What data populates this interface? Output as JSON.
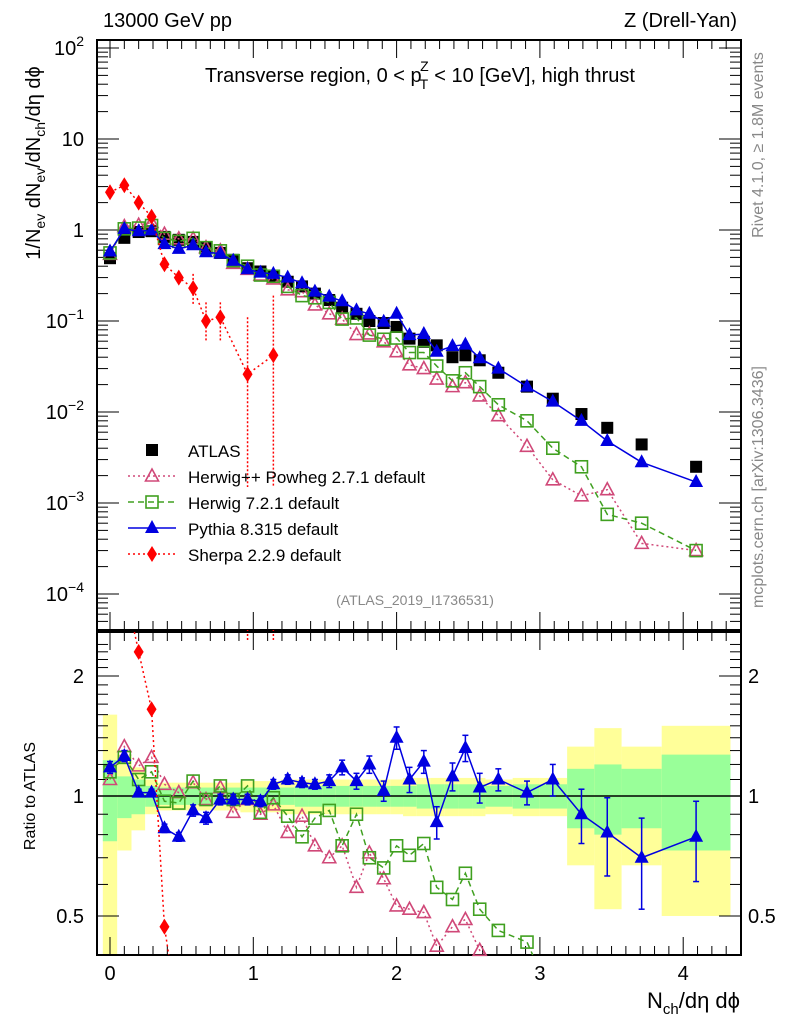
{
  "header": {
    "left": "13000 GeV pp",
    "right": "Z (Drell-Yan)"
  },
  "side_labels": {
    "top": "Rivet 4.1.0, ≥ 1.8M events",
    "bottom": "mcplots.cern.ch [arXiv:1306.3436]"
  },
  "analysis_id": "(ATLAS_2019_I1736531)",
  "chart_data": [
    {
      "type": "scatter",
      "panel": "main",
      "title": "Transverse region, 0 < p_T^Z < 10 [GeV], high thrust",
      "ylabel": "1/N_ev dN_ev/dN_ch/dη dϕ",
      "xlabel": "",
      "yscale": "log",
      "ylim": [
        3e-05,
        150
      ],
      "xlim": [
        -0.09,
        4.4
      ],
      "ytick_labels": [
        "10^2",
        "10",
        "1",
        "10^-1",
        "10^-2",
        "10^-3",
        "10^-4"
      ],
      "legend_position": "lower-left",
      "x": [
        0,
        0.1,
        0.2,
        0.29,
        0.38,
        0.48,
        0.58,
        0.67,
        0.77,
        0.86,
        0.96,
        1.05,
        1.14,
        1.24,
        1.34,
        1.43,
        1.53,
        1.62,
        1.72,
        1.81,
        1.91,
        2.0,
        2.09,
        2.19,
        2.28,
        2.39,
        2.48,
        2.58,
        2.71,
        2.91,
        3.09,
        3.29,
        3.47,
        3.71,
        4.09
      ],
      "series": [
        {
          "name": "ATLAS",
          "style": "data",
          "color": "#000000",
          "values": [
            0.49,
            0.82,
            0.95,
            0.97,
            0.84,
            0.78,
            0.74,
            0.65,
            0.56,
            0.47,
            0.38,
            0.35,
            0.31,
            0.27,
            0.24,
            0.2,
            0.17,
            0.14,
            0.12,
            0.1,
            0.095,
            0.086,
            0.064,
            0.059,
            0.054,
            0.04,
            0.042,
            0.037,
            0.027,
            0.019,
            0.014,
            0.0095,
            0.0067,
            0.0044,
            0.0025
          ]
        },
        {
          "name": "Herwig++ Powheg 2.7.1 default",
          "style": "dotted-open-triangle",
          "color": "#d04878",
          "values": [
            0.54,
            1.09,
            1.13,
            1.21,
            0.9,
            0.8,
            0.8,
            0.64,
            0.59,
            0.43,
            0.37,
            0.32,
            0.29,
            0.22,
            0.21,
            0.15,
            0.12,
            0.105,
            0.071,
            0.072,
            0.059,
            0.046,
            0.033,
            0.03,
            0.023,
            0.019,
            0.021,
            0.015,
            0.0091,
            0.0042,
            0.0018,
            0.0012,
            0.0014,
            0.00036,
            0.0003
          ]
        },
        {
          "name": "Herwig 7.2.1 default",
          "style": "dashed-open-square",
          "color": "#40a020",
          "values": [
            0.56,
            1.03,
            1.05,
            1.12,
            0.81,
            0.75,
            0.81,
            0.64,
            0.59,
            0.46,
            0.4,
            0.32,
            0.31,
            0.24,
            0.19,
            0.18,
            0.16,
            0.105,
            0.108,
            0.07,
            0.063,
            0.065,
            0.045,
            0.045,
            0.032,
            0.022,
            0.027,
            0.019,
            0.012,
            0.008,
            0.004,
            0.0025,
            0.00075,
            0.0006,
            0.0003
          ]
        },
        {
          "name": "Pythia 8.315 default",
          "style": "solid-filled-triangle",
          "color": "#0000e0",
          "values": [
            0.58,
            1.03,
            0.97,
            0.99,
            0.7,
            0.62,
            0.68,
            0.57,
            0.55,
            0.46,
            0.37,
            0.34,
            0.33,
            0.3,
            0.26,
            0.21,
            0.185,
            0.165,
            0.131,
            0.12,
            0.098,
            0.12,
            0.07,
            0.072,
            0.046,
            0.053,
            0.055,
            0.039,
            0.03,
            0.019,
            0.013,
            0.008,
            0.0048,
            0.0028,
            0.0017
          ]
        },
        {
          "name": "Sherpa 2.2.9 default",
          "style": "dotted-filled-diamond",
          "color": "#ff0000",
          "x": [
            0,
            0.1,
            0.2,
            0.29,
            0.38,
            0.48,
            0.58,
            0.67,
            0.77,
            0.96,
            1.14
          ],
          "values": [
            2.6,
            3.1,
            2.0,
            1.4,
            0.42,
            0.3,
            0.23,
            0.1,
            0.11,
            0.026,
            0.042
          ]
        }
      ]
    },
    {
      "type": "scatter",
      "panel": "ratio",
      "ylabel": "Ratio to ATLAS",
      "xlabel": "N_ch/dη dϕ",
      "yscale": "log",
      "ylim": [
        0.4,
        2.5
      ],
      "xlim": [
        -0.09,
        4.4
      ],
      "ytick_labels": [
        "0.5",
        "1",
        "2"
      ],
      "xtick_labels": [
        "0",
        "1",
        "2",
        "3",
        "4"
      ],
      "reference_line": 1,
      "band_edges": [
        -0.05,
        0.05,
        0.15,
        0.245,
        0.335,
        0.43,
        0.53,
        0.625,
        0.72,
        0.815,
        0.91,
        1.005,
        1.095,
        1.19,
        1.29,
        1.385,
        1.48,
        1.575,
        1.67,
        1.765,
        1.86,
        1.955,
        2.045,
        2.14,
        2.235,
        2.335,
        2.435,
        2.53,
        2.62,
        2.81,
        3.0,
        3.19,
        3.38,
        3.57,
        3.85,
        4.33
      ],
      "band_stat_sys_inner": [
        0.23,
        0.12,
        0.1,
        0.06,
        0.05,
        0.05,
        0.05,
        0.05,
        0.05,
        0.05,
        0.05,
        0.05,
        0.05,
        0.05,
        0.06,
        0.06,
        0.06,
        0.06,
        0.06,
        0.06,
        0.06,
        0.06,
        0.06,
        0.07,
        0.07,
        0.07,
        0.07,
        0.07,
        0.06,
        0.07,
        0.07,
        0.17,
        0.2,
        0.17,
        0.27
      ],
      "band_outer": [
        0.6,
        0.27,
        0.18,
        0.1,
        0.08,
        0.08,
        0.08,
        0.08,
        0.08,
        0.08,
        0.09,
        0.09,
        0.09,
        0.1,
        0.1,
        0.1,
        0.1,
        0.1,
        0.1,
        0.1,
        0.1,
        0.1,
        0.11,
        0.11,
        0.11,
        0.11,
        0.11,
        0.11,
        0.1,
        0.11,
        0.11,
        0.33,
        0.48,
        0.33,
        0.5
      ],
      "series": [
        {
          "name": "Herwig++ Powheg 2.7.1 default",
          "color": "#d04878",
          "values": [
            1.1,
            1.33,
            1.19,
            1.25,
            1.07,
            1.02,
            1.08,
            0.98,
            1.05,
            0.91,
            0.98,
            0.9,
            0.95,
            0.81,
            0.89,
            0.75,
            0.7,
            0.75,
            0.59,
            0.72,
            0.62,
            0.53,
            0.52,
            0.51,
            0.42,
            0.47,
            0.49,
            0.41
          ]
        },
        {
          "name": "Herwig 7.2.1 default",
          "color": "#40a020",
          "values": [
            1.15,
            1.25,
            1.1,
            1.15,
            0.97,
            0.96,
            1.09,
            0.98,
            1.06,
            0.98,
            1.06,
            0.91,
            0.99,
            0.89,
            0.79,
            0.88,
            0.92,
            0.75,
            0.9,
            0.7,
            0.66,
            0.75,
            0.71,
            0.76,
            0.59,
            0.55,
            0.64,
            0.52,
            0.46,
            0.43
          ]
        },
        {
          "name": "Pythia 8.315 default",
          "color": "#0000e0",
          "values": [
            1.18,
            1.26,
            1.02,
            1.02,
            0.83,
            0.79,
            0.92,
            0.88,
            0.98,
            0.98,
            0.98,
            0.97,
            1.07,
            1.1,
            1.08,
            1.07,
            1.09,
            1.18,
            1.09,
            1.2,
            1.03,
            1.4,
            1.1,
            1.22,
            0.86,
            1.12,
            1.32,
            1.05,
            1.1,
            1.02,
            1.1,
            0.9,
            0.81,
            0.7,
            0.79
          ],
          "errors": [
            0.04,
            0.04,
            0.02,
            0.02,
            0.02,
            0.02,
            0.03,
            0.03,
            0.03,
            0.03,
            0.03,
            0.03,
            0.03,
            0.03,
            0.03,
            0.03,
            0.04,
            0.05,
            0.05,
            0.06,
            0.06,
            0.09,
            0.08,
            0.08,
            0.08,
            0.09,
            0.1,
            0.09,
            0.07,
            0.07,
            0.1,
            0.14,
            0.18,
            0.18,
            0.18
          ]
        },
        {
          "name": "Sherpa 2.2.9 default",
          "color": "#ff0000",
          "x": [
            0.2,
            0.29,
            0.38
          ],
          "values": [
            2.3,
            1.65,
            0.47
          ]
        }
      ]
    }
  ]
}
